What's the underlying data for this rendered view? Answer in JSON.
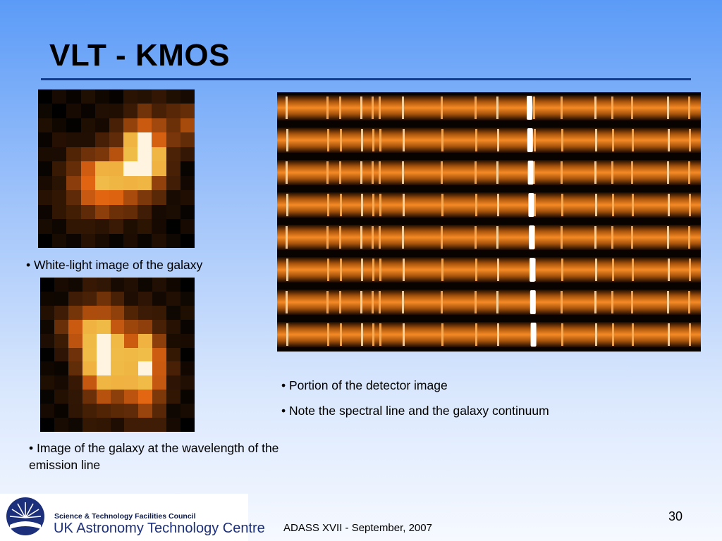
{
  "slide": {
    "title": "VLT - KMOS",
    "page_number": "30",
    "footer": "ADASS XVII - September, 2007"
  },
  "captions": {
    "white_light": "• White-light image of the galaxy",
    "emission": "• Image of the galaxy at the wavelength of the emission line",
    "detector_portion": "• Portion of the detector image",
    "detector_note": "• Note the spectral line and the galaxy continuum"
  },
  "logo": {
    "council": "Science & Technology Facilities Council",
    "centre": "UK Astronomy Technology Centre"
  },
  "colors": {
    "title_rule": "#173b8c",
    "spectrum_orange": "#e8801c",
    "emission_white": "#ffffff"
  }
}
